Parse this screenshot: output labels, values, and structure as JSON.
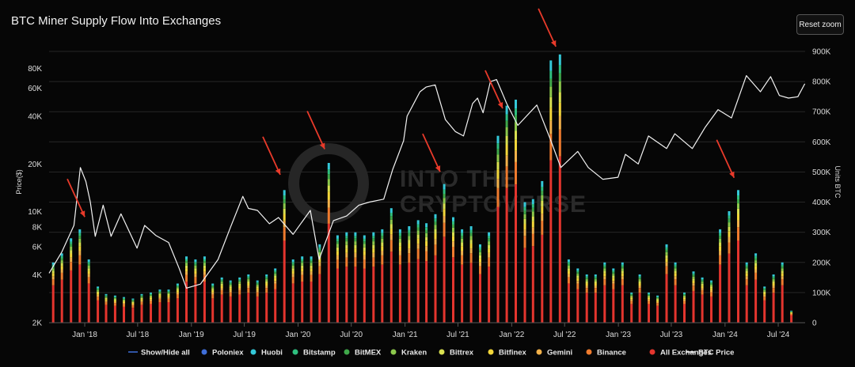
{
  "header": {
    "reset_zoom_label": "Reset zoom"
  },
  "watermark": {
    "line1": "INTO THE",
    "line2": "CRYPTOVERSE"
  },
  "colors": {
    "background": "#060606",
    "price_line": "#f2f2f2",
    "arrow": "#e83a2a",
    "all_exchanges": "#e4352e",
    "binance": "#ef7b2e",
    "gemini": "#f2b14a",
    "bitfinex": "#f2d63a",
    "bittrex": "#d8e050",
    "kraken": "#8cc84c",
    "bitmex": "#3fa84a",
    "bitstamp": "#2fbf7f",
    "huobi": "#34c8d8",
    "poloniex": "#3f6ed8"
  },
  "chart_data": {
    "type": "bar",
    "title": "BTC Miner Supply Flow Into Exchanges",
    "ylabel_left": "Price($)",
    "ylabel_right": "Units BTC",
    "y_left_scale": "log",
    "y_left_range": [
      2000,
      100000
    ],
    "y_left_ticks": [
      {
        "label": "2K",
        "value": 2000
      },
      {
        "label": "4K",
        "value": 4000
      },
      {
        "label": "6K",
        "value": 6000
      },
      {
        "label": "8K",
        "value": 8000
      },
      {
        "label": "10K",
        "value": 10000
      },
      {
        "label": "20K",
        "value": 20000
      },
      {
        "label": "40K",
        "value": 40000
      },
      {
        "label": "60K",
        "value": 60000
      },
      {
        "label": "80K",
        "value": 80000
      }
    ],
    "y_right_range": [
      0,
      900000
    ],
    "y_right_ticks": [
      {
        "label": "0",
        "value": 0
      },
      {
        "label": "100K",
        "value": 100000
      },
      {
        "label": "200K",
        "value": 200000
      },
      {
        "label": "300K",
        "value": 300000
      },
      {
        "label": "400K",
        "value": 400000
      },
      {
        "label": "500K",
        "value": 500000
      },
      {
        "label": "600K",
        "value": 600000
      },
      {
        "label": "700K",
        "value": 700000
      },
      {
        "label": "800K",
        "value": 800000
      },
      {
        "label": "900K",
        "value": 900000
      }
    ],
    "x_range": [
      "2017-09-01",
      "2024-10-01"
    ],
    "x_ticks": [
      {
        "label": "Jan '18",
        "date": "2018-01-01"
      },
      {
        "label": "Jul '18",
        "date": "2018-07-01"
      },
      {
        "label": "Jan '19",
        "date": "2019-01-01"
      },
      {
        "label": "Jul '19",
        "date": "2019-07-01"
      },
      {
        "label": "Jan '20",
        "date": "2020-01-01"
      },
      {
        "label": "Jul '20",
        "date": "2020-07-01"
      },
      {
        "label": "Jan '21",
        "date": "2021-01-01"
      },
      {
        "label": "Jul '21",
        "date": "2021-07-01"
      },
      {
        "label": "Jan '22",
        "date": "2022-01-01"
      },
      {
        "label": "Jul '22",
        "date": "2022-07-01"
      },
      {
        "label": "Jan '23",
        "date": "2023-01-01"
      },
      {
        "label": "Jul '23",
        "date": "2023-07-01"
      },
      {
        "label": "Jan '24",
        "date": "2024-01-01"
      },
      {
        "label": "Jul '24",
        "date": "2024-07-01"
      }
    ],
    "legend": [
      {
        "label": "Show/Hide all",
        "marker": "line",
        "color": "#3f6ed8"
      },
      {
        "label": "Poloniex",
        "marker": "dot",
        "color": "#3f6ed8"
      },
      {
        "label": "Huobi",
        "marker": "dot",
        "color": "#34c8d8"
      },
      {
        "label": "Bitstamp",
        "marker": "dot",
        "color": "#2fbf7f"
      },
      {
        "label": "BitMEX",
        "marker": "dot",
        "color": "#3fa84a"
      },
      {
        "label": "Kraken",
        "marker": "dot",
        "color": "#8cc84c"
      },
      {
        "label": "Bittrex",
        "marker": "dot",
        "color": "#d8e050"
      },
      {
        "label": "Bitfinex",
        "marker": "dot",
        "color": "#f2d63a"
      },
      {
        "label": "Gemini",
        "marker": "dot",
        "color": "#f2b14a"
      },
      {
        "label": "Binance",
        "marker": "dot",
        "color": "#ef7b2e"
      },
      {
        "label": "All Exchanges",
        "marker": "dot",
        "color": "#e4352e"
      },
      {
        "label": "BTC Price",
        "marker": "line",
        "color": "#f2f2f2"
      }
    ],
    "legend_position": "bottom",
    "grid": true,
    "bars_btc": [
      [
        "2017-09-15",
        200000
      ],
      [
        "2017-10-15",
        230000
      ],
      [
        "2017-11-15",
        280000
      ],
      [
        "2017-12-15",
        310000
      ],
      [
        "2018-01-15",
        210000
      ],
      [
        "2018-02-15",
        120000
      ],
      [
        "2018-03-15",
        95000
      ],
      [
        "2018-04-15",
        90000
      ],
      [
        "2018-05-15",
        85000
      ],
      [
        "2018-06-15",
        80000
      ],
      [
        "2018-07-15",
        95000
      ],
      [
        "2018-08-15",
        100000
      ],
      [
        "2018-09-15",
        110000
      ],
      [
        "2018-10-15",
        110000
      ],
      [
        "2018-11-15",
        130000
      ],
      [
        "2018-12-15",
        220000
      ],
      [
        "2019-01-15",
        210000
      ],
      [
        "2019-02-15",
        220000
      ],
      [
        "2019-03-15",
        130000
      ],
      [
        "2019-04-15",
        150000
      ],
      [
        "2019-05-15",
        140000
      ],
      [
        "2019-06-15",
        150000
      ],
      [
        "2019-07-15",
        160000
      ],
      [
        "2019-08-15",
        140000
      ],
      [
        "2019-09-15",
        160000
      ],
      [
        "2019-10-15",
        180000
      ],
      [
        "2019-11-15",
        440000
      ],
      [
        "2019-12-15",
        210000
      ],
      [
        "2020-01-15",
        220000
      ],
      [
        "2020-02-15",
        220000
      ],
      [
        "2020-03-15",
        260000
      ],
      [
        "2020-04-15",
        530000
      ],
      [
        "2020-05-15",
        290000
      ],
      [
        "2020-06-15",
        300000
      ],
      [
        "2020-07-15",
        300000
      ],
      [
        "2020-08-15",
        290000
      ],
      [
        "2020-09-15",
        300000
      ],
      [
        "2020-10-15",
        310000
      ],
      [
        "2020-11-15",
        380000
      ],
      [
        "2020-12-15",
        310000
      ],
      [
        "2021-01-15",
        320000
      ],
      [
        "2021-02-15",
        340000
      ],
      [
        "2021-03-15",
        330000
      ],
      [
        "2021-04-15",
        360000
      ],
      [
        "2021-05-15",
        460000
      ],
      [
        "2021-06-15",
        350000
      ],
      [
        "2021-07-15",
        310000
      ],
      [
        "2021-08-15",
        320000
      ],
      [
        "2021-09-15",
        260000
      ],
      [
        "2021-10-15",
        300000
      ],
      [
        "2021-11-15",
        620000
      ],
      [
        "2021-12-15",
        720000
      ],
      [
        "2022-01-15",
        740000
      ],
      [
        "2022-02-15",
        400000
      ],
      [
        "2022-03-15",
        410000
      ],
      [
        "2022-04-15",
        470000
      ],
      [
        "2022-05-15",
        870000
      ],
      [
        "2022-06-15",
        890000
      ],
      [
        "2022-07-15",
        210000
      ],
      [
        "2022-08-15",
        180000
      ],
      [
        "2022-09-15",
        160000
      ],
      [
        "2022-10-15",
        160000
      ],
      [
        "2022-11-15",
        200000
      ],
      [
        "2022-12-15",
        180000
      ],
      [
        "2023-01-15",
        200000
      ],
      [
        "2023-02-15",
        100000
      ],
      [
        "2023-03-15",
        160000
      ],
      [
        "2023-04-15",
        100000
      ],
      [
        "2023-05-15",
        90000
      ],
      [
        "2023-06-15",
        260000
      ],
      [
        "2023-07-15",
        200000
      ],
      [
        "2023-08-15",
        100000
      ],
      [
        "2023-09-15",
        170000
      ],
      [
        "2023-10-15",
        150000
      ],
      [
        "2023-11-15",
        140000
      ],
      [
        "2023-12-15",
        310000
      ],
      [
        "2024-01-15",
        370000
      ],
      [
        "2024-02-15",
        440000
      ],
      [
        "2024-03-15",
        200000
      ],
      [
        "2024-04-15",
        230000
      ],
      [
        "2024-05-15",
        120000
      ],
      [
        "2024-06-15",
        160000
      ],
      [
        "2024-07-15",
        200000
      ],
      [
        "2024-08-15",
        40000
      ]
    ],
    "btc_price": [
      [
        "2017-09-01",
        4100
      ],
      [
        "2017-10-15",
        5600
      ],
      [
        "2017-11-25",
        8200
      ],
      [
        "2017-12-17",
        19000
      ],
      [
        "2018-01-05",
        15500
      ],
      [
        "2018-01-20",
        11500
      ],
      [
        "2018-02-06",
        7000
      ],
      [
        "2018-03-05",
        11000
      ],
      [
        "2018-04-01",
        7000
      ],
      [
        "2018-05-05",
        9700
      ],
      [
        "2018-06-29",
        5900
      ],
      [
        "2018-07-25",
        8200
      ],
      [
        "2018-09-01",
        7100
      ],
      [
        "2018-10-15",
        6400
      ],
      [
        "2018-11-20",
        4400
      ],
      [
        "2018-12-15",
        3300
      ],
      [
        "2019-02-01",
        3500
      ],
      [
        "2019-04-02",
        5000
      ],
      [
        "2019-05-15",
        8000
      ],
      [
        "2019-06-26",
        12500
      ],
      [
        "2019-07-15",
        10500
      ],
      [
        "2019-08-15",
        10200
      ],
      [
        "2019-09-25",
        8400
      ],
      [
        "2019-10-26",
        9200
      ],
      [
        "2019-12-15",
        7200
      ],
      [
        "2020-02-12",
        10200
      ],
      [
        "2020-03-13",
        5000
      ],
      [
        "2020-05-01",
        8800
      ],
      [
        "2020-06-15",
        9400
      ],
      [
        "2020-07-27",
        11000
      ],
      [
        "2020-09-01",
        11500
      ],
      [
        "2020-10-20",
        12000
      ],
      [
        "2020-11-20",
        18500
      ],
      [
        "2020-12-27",
        28000
      ],
      [
        "2021-01-08",
        40000
      ],
      [
        "2021-02-21",
        57000
      ],
      [
        "2021-03-14",
        61000
      ],
      [
        "2021-04-14",
        63000
      ],
      [
        "2021-05-19",
        38000
      ],
      [
        "2021-06-22",
        32000
      ],
      [
        "2021-07-20",
        30000
      ],
      [
        "2021-08-20",
        48000
      ],
      [
        "2021-09-06",
        52000
      ],
      [
        "2021-09-25",
        42000
      ],
      [
        "2021-10-20",
        66000
      ],
      [
        "2021-11-10",
        68000
      ],
      [
        "2021-12-15",
        48000
      ],
      [
        "2022-01-22",
        35000
      ],
      [
        "2022-03-28",
        47000
      ],
      [
        "2022-05-12",
        29000
      ],
      [
        "2022-06-18",
        19000
      ],
      [
        "2022-08-15",
        24000
      ],
      [
        "2022-09-20",
        19000
      ],
      [
        "2022-11-09",
        16000
      ],
      [
        "2022-12-31",
        16500
      ],
      [
        "2023-01-25",
        23000
      ],
      [
        "2023-03-10",
        20000
      ],
      [
        "2023-04-14",
        30000
      ],
      [
        "2023-06-15",
        25000
      ],
      [
        "2023-07-13",
        31000
      ],
      [
        "2023-09-11",
        25000
      ],
      [
        "2023-10-25",
        34000
      ],
      [
        "2023-12-08",
        44000
      ],
      [
        "2024-01-23",
        39000
      ],
      [
        "2024-03-14",
        72000
      ],
      [
        "2024-05-01",
        57000
      ],
      [
        "2024-06-05",
        71000
      ],
      [
        "2024-07-05",
        54000
      ],
      [
        "2024-08-05",
        52000
      ],
      [
        "2024-09-06",
        53000
      ],
      [
        "2024-09-30",
        64000
      ]
    ],
    "arrows": [
      {
        "tip_date": "2018-01-01",
        "tip_btc": 330000
      },
      {
        "tip_date": "2019-11-01",
        "tip_btc": 470000
      },
      {
        "tip_date": "2020-04-01",
        "tip_btc": 555000
      },
      {
        "tip_date": "2021-05-01",
        "tip_btc": 480000
      },
      {
        "tip_date": "2021-12-01",
        "tip_btc": 690000
      },
      {
        "tip_date": "2022-06-01",
        "tip_btc": 895000
      },
      {
        "tip_date": "2024-02-01",
        "tip_btc": 460000
      }
    ]
  }
}
